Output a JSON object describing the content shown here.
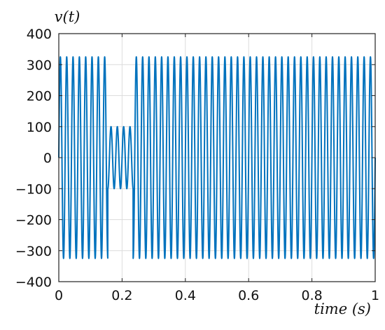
{
  "chart_data": {
    "type": "line",
    "title": "",
    "xlabel": "time (s)",
    "ylabel": "v(t)",
    "xlim": [
      0,
      1
    ],
    "ylim": [
      -400,
      400
    ],
    "x_ticks": [
      0,
      0.2,
      0.4,
      0.6,
      0.8,
      1
    ],
    "x_tick_labels": [
      "0",
      "0.2",
      "0.4",
      "0.6",
      "0.8",
      "1"
    ],
    "y_ticks": [
      -400,
      -300,
      -200,
      -100,
      0,
      100,
      200,
      300,
      400
    ],
    "y_tick_labels": [
      "−400",
      "−300",
      "−200",
      "−100",
      "0",
      "100",
      "200",
      "300",
      "400"
    ],
    "grid": true,
    "series": [
      {
        "color": "#0072bd",
        "frequency_hz": 50,
        "segments": [
          {
            "t_start": 0.0,
            "t_end": 0.155,
            "amplitude": 325
          },
          {
            "t_start": 0.155,
            "t_end": 0.235,
            "amplitude": 100
          },
          {
            "t_start": 0.235,
            "t_end": 1.0,
            "amplitude": 325
          }
        ]
      }
    ]
  }
}
